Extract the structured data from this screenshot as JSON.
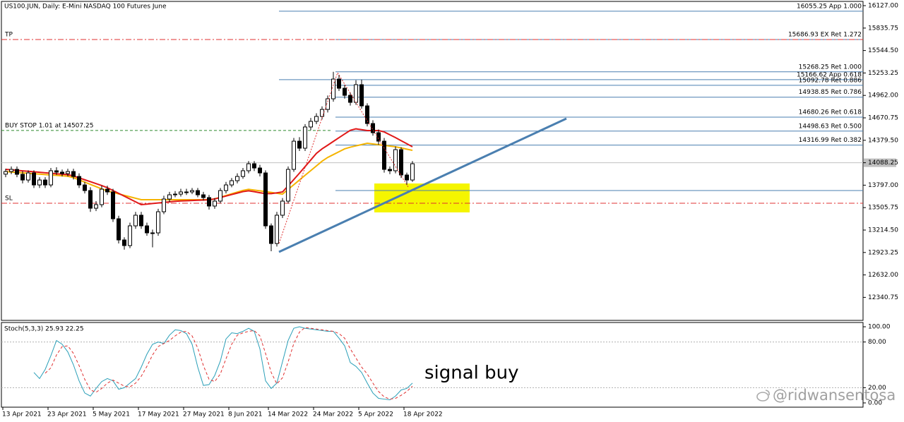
{
  "chart_data": [
    {
      "type": "candlestick",
      "title": "US100.JUN, Daily:  E-Mini NASDAQ 100 Futures June",
      "categories": [
        "13 Apr 2021",
        null,
        null,
        null,
        null,
        null,
        null,
        null,
        "23 Apr 2021",
        null,
        null,
        null,
        null,
        null,
        null,
        null,
        "5 May 2021",
        null,
        null,
        null,
        null,
        null,
        null,
        null,
        "17 May 2021",
        null,
        null,
        null,
        null,
        null,
        null,
        null,
        "27 May 2021",
        null,
        null,
        null,
        null,
        null,
        null,
        null,
        "8 Jun 2021",
        null,
        null,
        null,
        null,
        null,
        null,
        "14 Mar 2022",
        null,
        null,
        null,
        null,
        null,
        null,
        null,
        "24 Mar 2022",
        null,
        null,
        null,
        null,
        null,
        null,
        null,
        "5 Apr 2022",
        null,
        null,
        null,
        null,
        null,
        null,
        null,
        "18 Apr 2022",
        null
      ],
      "open": [
        13940,
        13974,
        14002,
        13938,
        13864,
        13956,
        13800,
        13864,
        13800,
        13984,
        13966,
        13947,
        13974,
        13910,
        13800,
        13727,
        13498,
        13544,
        13745,
        13709,
        13361,
        13086,
        13013,
        13269,
        13407,
        13269,
        13178,
        13178,
        13452,
        13617,
        13672,
        13681,
        13709,
        13709,
        13727,
        13672,
        13636,
        13526,
        13590,
        13727,
        13800,
        13855,
        13910,
        13984,
        14075,
        14020,
        13956,
        13269,
        13040,
        13407,
        13590,
        14002,
        14368,
        14277,
        14552,
        14625,
        14689,
        14780,
        14918,
        15174,
        15055,
        14963,
        14872,
        15101,
        14826,
        14597,
        14478,
        14368,
        14002,
        13984,
        14258,
        13929,
        13864
      ],
      "high": [
        14010,
        14040,
        14040,
        13980,
        13990,
        13990,
        13900,
        13900,
        14020,
        14030,
        14000,
        14010,
        14010,
        13950,
        13840,
        13770,
        13590,
        13790,
        13790,
        13750,
        13400,
        13120,
        13310,
        13450,
        13450,
        13310,
        13220,
        13490,
        13660,
        13710,
        13720,
        13750,
        13750,
        13760,
        13760,
        13710,
        13670,
        13630,
        13760,
        13840,
        13890,
        13950,
        14020,
        14110,
        14110,
        14060,
        13990,
        13300,
        13450,
        13630,
        14040,
        14410,
        14420,
        14590,
        14670,
        14730,
        14820,
        14960,
        15268,
        15230,
        15100,
        15000,
        15160,
        15166,
        14860,
        14640,
        14520,
        14410,
        14040,
        14300,
        14290,
        13960,
        14110
      ],
      "low": [
        13900,
        13940,
        13900,
        13820,
        13830,
        13760,
        13760,
        13760,
        13770,
        13930,
        13910,
        13910,
        13870,
        13760,
        13690,
        13450,
        13460,
        13510,
        13670,
        13320,
        13040,
        12960,
        12980,
        13230,
        13230,
        13140,
        12990,
        13140,
        13420,
        13580,
        13640,
        13650,
        13670,
        13680,
        13640,
        13600,
        13480,
        13490,
        13560,
        13690,
        13770,
        13820,
        13880,
        13950,
        13980,
        13910,
        13230,
        12940,
        13000,
        13370,
        13560,
        13970,
        14240,
        14240,
        14510,
        14590,
        14650,
        14740,
        14880,
        15020,
        14920,
        14830,
        14840,
        14790,
        14560,
        14440,
        14320,
        13960,
        13940,
        13950,
        13890,
        13800,
        13840
      ],
      "close": [
        13974,
        14002,
        13938,
        13864,
        13956,
        13800,
        13864,
        13800,
        13984,
        13966,
        13947,
        13974,
        13910,
        13800,
        13727,
        13498,
        13544,
        13745,
        13709,
        13361,
        13086,
        13013,
        13269,
        13407,
        13269,
        13178,
        13178,
        13452,
        13617,
        13672,
        13681,
        13709,
        13709,
        13727,
        13672,
        13636,
        13526,
        13590,
        13727,
        13800,
        13855,
        13910,
        13984,
        14075,
        14020,
        13956,
        13269,
        13040,
        13407,
        13590,
        14002,
        14368,
        14277,
        14552,
        14625,
        14689,
        14780,
        14918,
        15174,
        15055,
        14963,
        14872,
        15101,
        14826,
        14597,
        14478,
        14368,
        14002,
        13984,
        14258,
        13929,
        13864,
        14075
      ],
      "moving_averages": [
        {
          "color": "#f5b400",
          "values": [
            13974,
            13968,
            13963,
            13957,
            13951,
            13946,
            13940,
            13935,
            13929,
            13924,
            13918,
            13913,
            13895,
            13866,
            13837,
            13807,
            13778,
            13749,
            13722,
            13703,
            13684,
            13665,
            13646,
            13627,
            13608,
            13608,
            13608,
            13608,
            13608,
            13608,
            13608,
            13608,
            13608,
            13608,
            13608,
            13608,
            13608,
            13619,
            13641,
            13663,
            13685,
            13707,
            13729,
            13743,
            13733,
            13724,
            13714,
            13703,
            13692,
            13681,
            13742,
            13803,
            13864,
            13925,
            13986,
            14047,
            14108,
            14157,
            14194,
            14231,
            14268,
            14290,
            14307,
            14324,
            14341,
            14332,
            14323,
            14313,
            14304,
            14295,
            14280,
            14264,
            14249
          ]
        },
        {
          "color": "#e01818",
          "values": [
            14002,
            13996,
            13990,
            13983,
            13977,
            13971,
            13964,
            13958,
            13952,
            13945,
            13939,
            13933,
            13917,
            13892,
            13867,
            13842,
            13817,
            13792,
            13764,
            13727,
            13691,
            13654,
            13617,
            13581,
            13544,
            13551,
            13559,
            13566,
            13573,
            13581,
            13588,
            13592,
            13595,
            13598,
            13601,
            13604,
            13607,
            13618,
            13637,
            13656,
            13675,
            13694,
            13713,
            13724,
            13712,
            13699,
            13687,
            13687,
            13698,
            13709,
            13789,
            13870,
            13953,
            14038,
            14124,
            14210,
            14268,
            14316,
            14365,
            14414,
            14462,
            14509,
            14528,
            14517,
            14506,
            14506,
            14506,
            14488,
            14451,
            14414,
            14374,
            14335,
            14295
          ]
        }
      ],
      "ylim": [
        12042,
        16182
      ],
      "yticks": [
        {
          "value": 16127,
          "label": "16127.00"
        },
        15835.75,
        {
          "value": 15544.5,
          "label": "15544.50"
        },
        15253.25,
        {
          "value": 14962,
          "label": "14962.00"
        },
        14670.75,
        {
          "value": 14379.5,
          "label": "14379.50"
        },
        14088.25,
        {
          "value": 13797,
          "label": "13797.00"
        },
        13505.75,
        {
          "value": 13214.5,
          "label": "13214.50"
        },
        12923.25,
        {
          "value": 12632,
          "label": "12632.00"
        },
        12340.75
      ],
      "current_price": 14088.25,
      "levels": [
        {
          "value": 16055.25,
          "label": "16055.25 App 1.000"
        },
        {
          "value": 15686.93,
          "label": "15686.93 EX Ret 1.272"
        },
        {
          "value": 15268.25,
          "label": "15268.25 Ret 1.000"
        },
        {
          "value": 15166.62,
          "label": "15166.62 App 0.618"
        },
        {
          "value": 15092.78,
          "label": "15092.78 Ret 0.886"
        },
        {
          "value": 14938.85,
          "label": "14938.85 Ret 0.786"
        },
        {
          "value": 14680.26,
          "label": "14680.26 Ret 0.618"
        },
        {
          "value": 14498.63,
          "label": "14498.63 Ret 0.500"
        },
        {
          "value": 14316.99,
          "label": "14316.99 Ret 0.382"
        }
      ],
      "level_color": "#4a7fb0",
      "unlabeled_level": 13727,
      "orders": [
        {
          "label": "TP",
          "value": 15687,
          "color": "#e03030",
          "style": "dash-dot"
        },
        {
          "label": "BUY STOP 1.01 at 14507.25",
          "value": 14507.25,
          "color": "#2e8b2e",
          "style": "dashed"
        },
        {
          "label": "SL",
          "value": 13562,
          "color": "#e03030",
          "style": "dash-dot"
        }
      ]
    },
    {
      "type": "line",
      "title": "Stoch(5,3,3) 25.93 22.25",
      "series": [
        {
          "color": "#2a9fb8",
          "style": "solid",
          "values": [
            null,
            null,
            null,
            null,
            null,
            40,
            32,
            44,
            62,
            82,
            77,
            67,
            50,
            29,
            13,
            9,
            19,
            28,
            32,
            29,
            18,
            20,
            26,
            32,
            47,
            64,
            77,
            80,
            78,
            89,
            96,
            95,
            91,
            77,
            47,
            23,
            24,
            36,
            55,
            84,
            92,
            91,
            94,
            98,
            94,
            71,
            29,
            19,
            26,
            54,
            82,
            98,
            100,
            98,
            97,
            96,
            95,
            94,
            94,
            85,
            75,
            53,
            48,
            40,
            26,
            13,
            6,
            5,
            4,
            9,
            17,
            19,
            26
          ]
        },
        {
          "color": "#e03030",
          "style": "dashed",
          "values": [
            null,
            null,
            null,
            null,
            null,
            null,
            null,
            39,
            46,
            63,
            74,
            75,
            65,
            49,
            31,
            17,
            14,
            19,
            26,
            30,
            26,
            22,
            21,
            26,
            35,
            48,
            63,
            74,
            78,
            82,
            88,
            93,
            94,
            88,
            72,
            49,
            31,
            28,
            38,
            58,
            77,
            89,
            92,
            94,
            95,
            88,
            65,
            40,
            25,
            33,
            54,
            78,
            93,
            99,
            98,
            97,
            96,
            95,
            94,
            91,
            85,
            71,
            59,
            47,
            38,
            26,
            15,
            8,
            5,
            6,
            10,
            15,
            22
          ]
        }
      ],
      "ylim": [
        -5.6,
        105.6
      ],
      "yticks": [
        {
          "value": 100,
          "label": "100.00"
        },
        {
          "value": 80,
          "label": "80.00"
        },
        {
          "value": 20,
          "label": "20.00"
        },
        {
          "value": 0,
          "label": "0.00"
        }
      ],
      "guide_levels": [
        80,
        20
      ]
    }
  ],
  "annotations": {
    "signal": "signal buy",
    "watermark": "@ridwansentosa"
  }
}
